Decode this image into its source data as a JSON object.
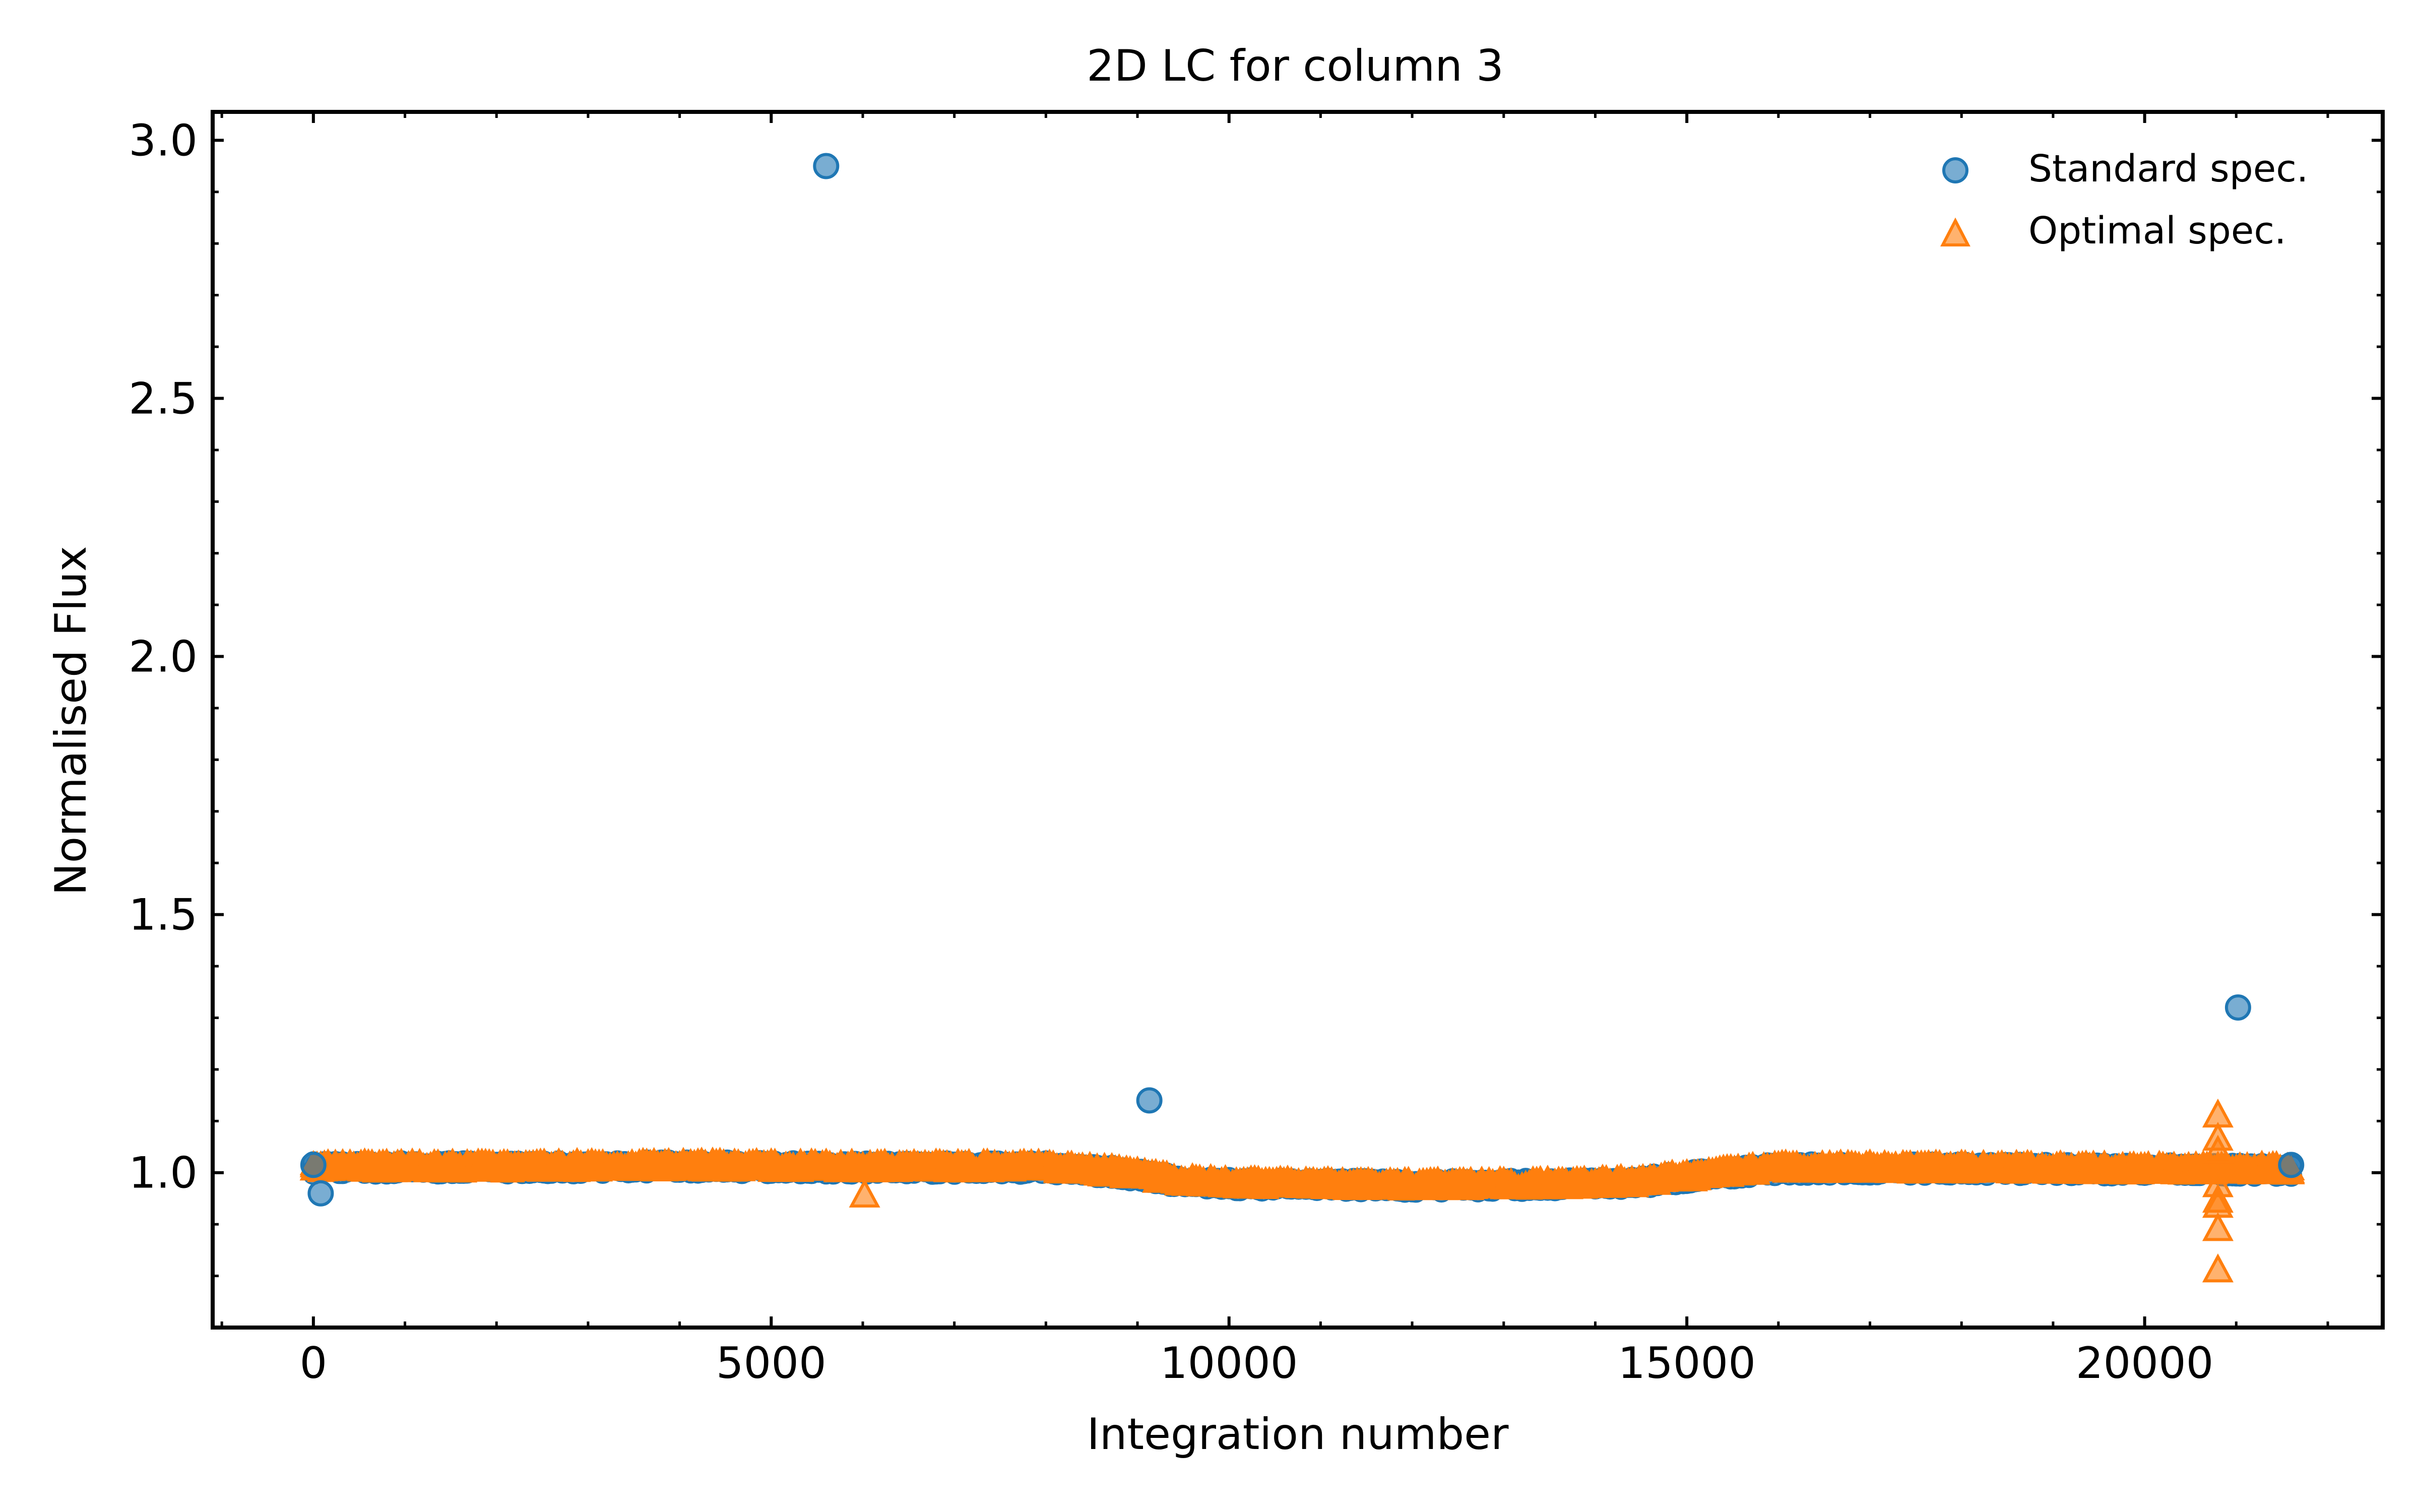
{
  "chart_data": {
    "type": "scatter",
    "title": "2D LC for column 3",
    "xlabel": "Integration number",
    "ylabel": "Normalised Flux",
    "xlim": [
      -1100,
      22600
    ],
    "ylim": [
      0.7,
      3.055
    ],
    "x_ticks": [
      0,
      5000,
      10000,
      15000,
      20000
    ],
    "x_tick_labels": [
      "0",
      "5000",
      "10000",
      "15000",
      "20000"
    ],
    "y_ticks": [
      1.0,
      1.5,
      2.0,
      2.5,
      3.0
    ],
    "y_tick_labels": [
      "1.0",
      "1.5",
      "2.0",
      "2.5",
      "3.0"
    ],
    "grid": false,
    "legend_position": "top-right",
    "colors": {
      "standard": "#1f77b4",
      "optimal": "#ff7f0e"
    },
    "baseline": {
      "x_range": [
        0,
        21600
      ],
      "trend_x": [
        0,
        2000,
        4000,
        6000,
        8000,
        8800,
        9400,
        10000,
        12000,
        13000,
        14000,
        14500,
        15200,
        16000,
        18000,
        20000,
        21600
      ],
      "trend_y": [
        1.01,
        1.01,
        1.012,
        1.01,
        1.01,
        1.0,
        0.985,
        0.978,
        0.975,
        0.976,
        0.978,
        0.982,
        0.995,
        1.008,
        1.008,
        1.006,
        1.006
      ],
      "scatter": 0.012
    },
    "series": [
      {
        "name": "Standard spec.",
        "marker": "circle",
        "outliers": [
          {
            "x": 5600,
            "y": 2.95
          },
          {
            "x": 9130,
            "y": 1.14
          },
          {
            "x": 21020,
            "y": 1.32
          },
          {
            "x": 80,
            "y": 0.96
          },
          {
            "x": 0,
            "y": 1.015
          },
          {
            "x": 21600,
            "y": 1.015
          }
        ]
      },
      {
        "name": "Optimal spec.",
        "marker": "triangle",
        "outliers": [
          {
            "x": 6020,
            "y": 0.955
          },
          {
            "x": 20800,
            "y": 1.11
          },
          {
            "x": 20800,
            "y": 1.065
          },
          {
            "x": 20800,
            "y": 1.04
          },
          {
            "x": 20800,
            "y": 0.975
          },
          {
            "x": 20800,
            "y": 0.945
          },
          {
            "x": 20800,
            "y": 0.935
          },
          {
            "x": 20800,
            "y": 0.89
          },
          {
            "x": 20800,
            "y": 0.81
          }
        ]
      }
    ]
  }
}
